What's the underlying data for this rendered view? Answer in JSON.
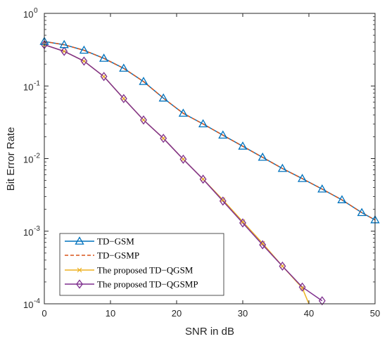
{
  "chart_data": {
    "type": "line",
    "title": "",
    "xlabel": "SNR in dB",
    "ylabel": "Bit Error Rate",
    "xlim": [
      0,
      50
    ],
    "ylim": [
      0.0001,
      1
    ],
    "yscale": "log",
    "grid": false,
    "legend_position": "bottom-left",
    "x_ticks": [
      {
        "value": 0,
        "label": "0"
      },
      {
        "value": 10,
        "label": "10"
      },
      {
        "value": 20,
        "label": "20"
      },
      {
        "value": 30,
        "label": "30"
      },
      {
        "value": 40,
        "label": "40"
      },
      {
        "value": 50,
        "label": "50"
      }
    ],
    "y_ticks": [
      {
        "value": 1,
        "base": "10",
        "exp": "0"
      },
      {
        "value": 0.1,
        "base": "10",
        "exp": "-1"
      },
      {
        "value": 0.01,
        "base": "10",
        "exp": "-2"
      },
      {
        "value": 0.001,
        "base": "10",
        "exp": "-3"
      },
      {
        "value": 0.0001,
        "base": "10",
        "exp": "-4"
      }
    ],
    "series": [
      {
        "name": "TD−GSM",
        "color": "#0072BD",
        "line_style": "solid",
        "marker": "triangle",
        "x": [
          0,
          3,
          6,
          9,
          12,
          15,
          18,
          21,
          24,
          27,
          30,
          33,
          36,
          39,
          42,
          45,
          48,
          50
        ],
        "y": [
          0.41,
          0.37,
          0.31,
          0.24,
          0.175,
          0.115,
          0.068,
          0.042,
          0.03,
          0.021,
          0.0148,
          0.0104,
          0.0073,
          0.0053,
          0.0038,
          0.0027,
          0.0018,
          0.00143
        ]
      },
      {
        "name": "TD−GSMP",
        "color": "#D95319",
        "line_style": "dashed",
        "marker": "none",
        "x": [
          0,
          3,
          6,
          9,
          12,
          15,
          18,
          21,
          24,
          27,
          30,
          33,
          36,
          39,
          42,
          45,
          48,
          50
        ],
        "y": [
          0.41,
          0.37,
          0.31,
          0.24,
          0.175,
          0.115,
          0.068,
          0.042,
          0.03,
          0.021,
          0.0148,
          0.0104,
          0.0073,
          0.0053,
          0.0038,
          0.0027,
          0.0018,
          0.00143
        ]
      },
      {
        "name": "The proposed TD−QGSM",
        "color": "#EDB120",
        "line_style": "solid",
        "marker": "x",
        "x": [
          0,
          3,
          6,
          9,
          12,
          15,
          18,
          21,
          24,
          27,
          30,
          33,
          36,
          39,
          40
        ],
        "y": [
          0.37,
          0.3,
          0.22,
          0.135,
          0.067,
          0.034,
          0.019,
          0.0098,
          0.0052,
          0.0027,
          0.00135,
          0.00068,
          0.00033,
          0.000165,
          0.0001
        ]
      },
      {
        "name": "The proposed TD−QGSMP",
        "color": "#7E2F8E",
        "line_style": "solid",
        "marker": "diamond",
        "x": [
          0,
          3,
          6,
          9,
          12,
          15,
          18,
          21,
          24,
          27,
          30,
          33,
          36,
          39,
          42
        ],
        "y": [
          0.37,
          0.3,
          0.22,
          0.135,
          0.067,
          0.034,
          0.019,
          0.0098,
          0.0052,
          0.0026,
          0.0013,
          0.00065,
          0.00033,
          0.00017,
          0.00011
        ]
      }
    ]
  }
}
